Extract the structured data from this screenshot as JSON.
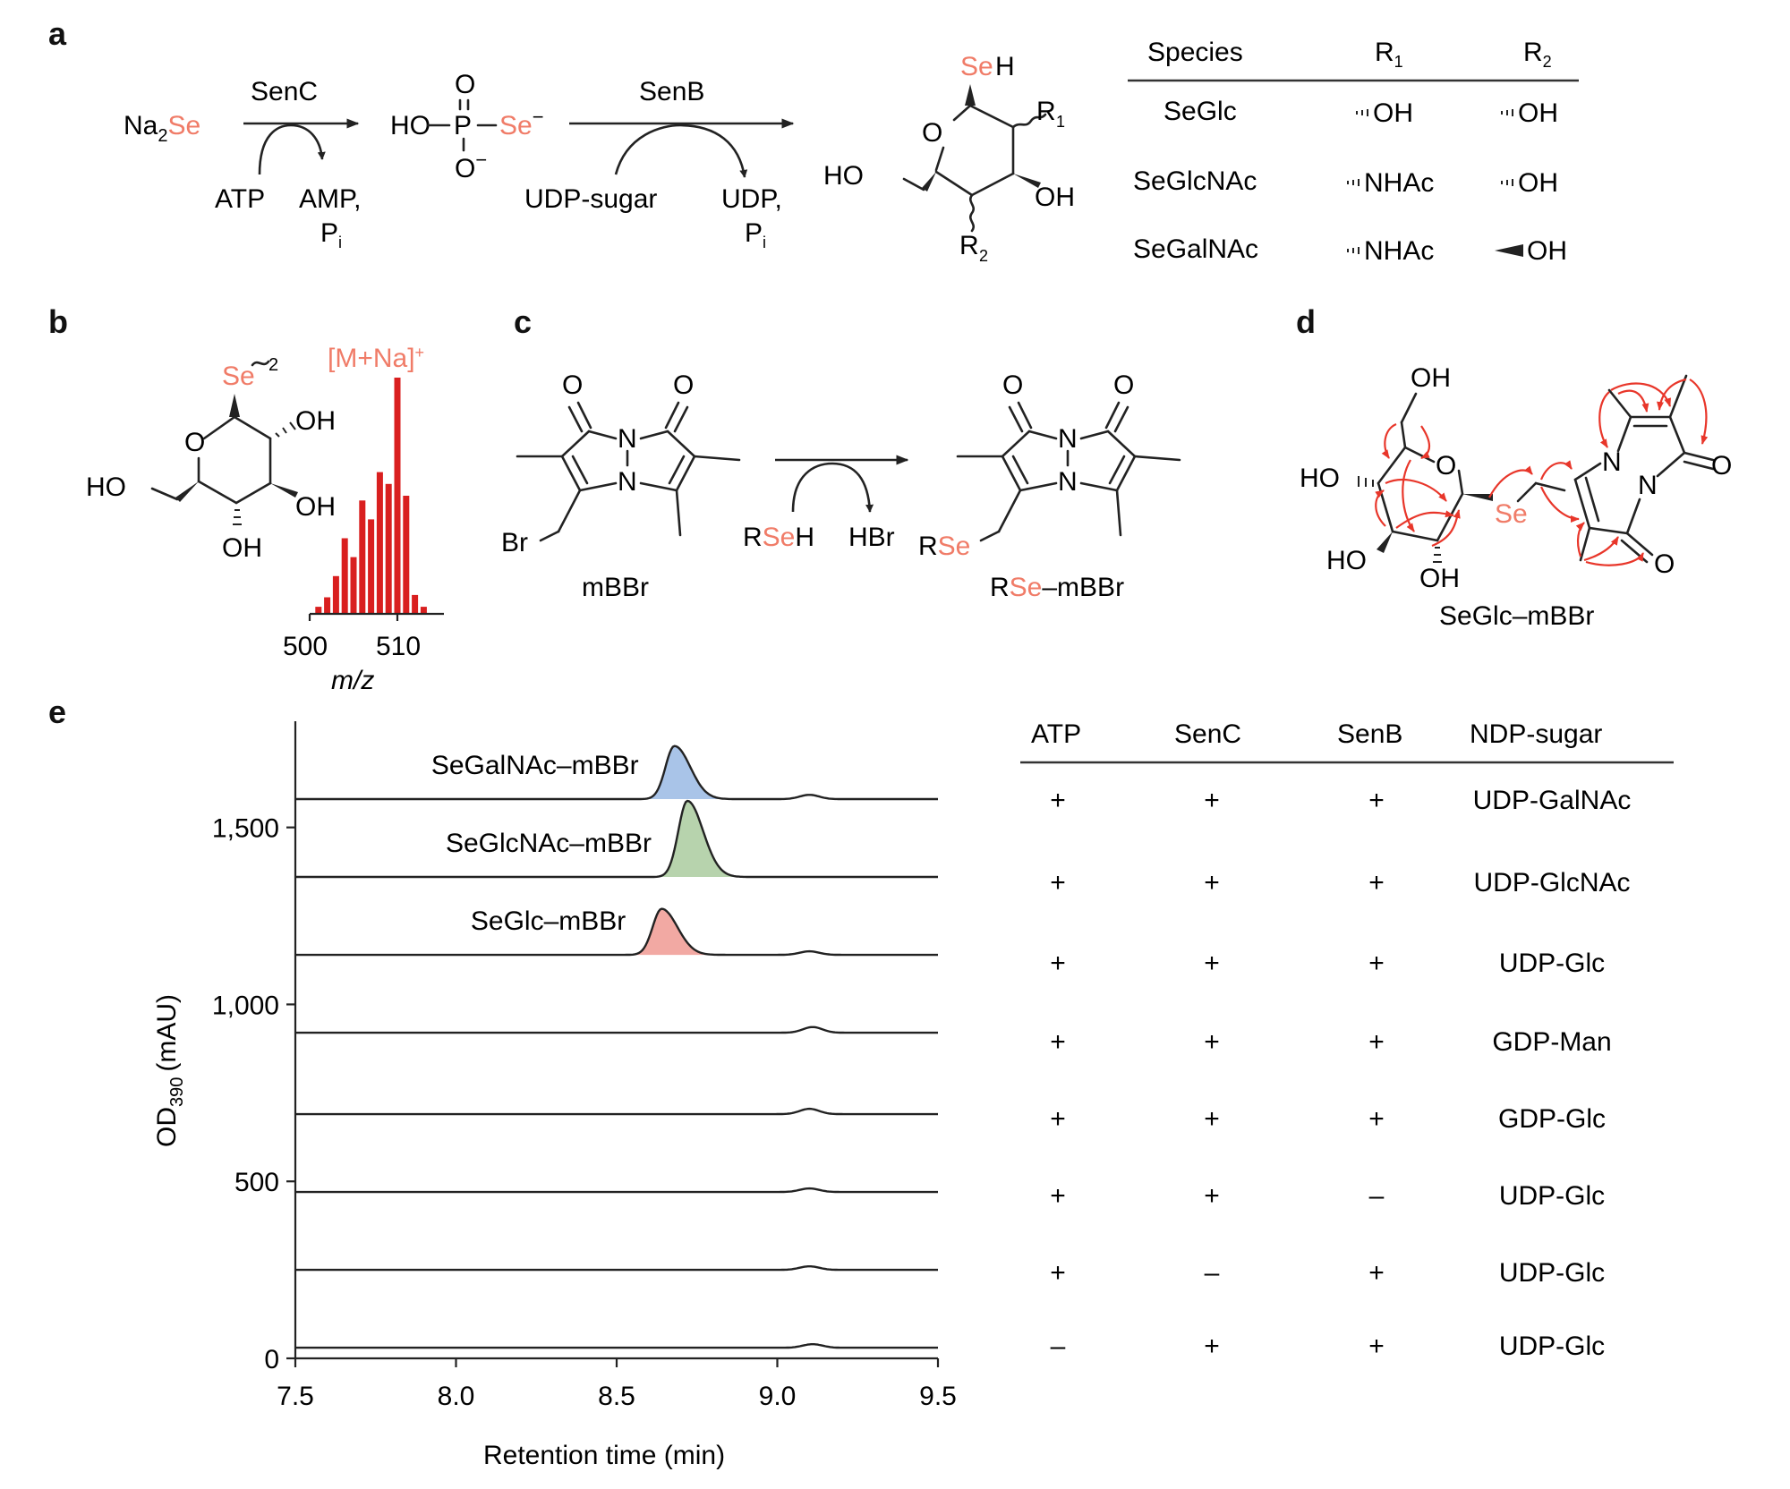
{
  "colors": {
    "ink": "#1a1a1a",
    "selenium": "#f07c68",
    "ms_bar": "#d91f1f",
    "hmbc_arrow": "#e8362a",
    "peak_SeGalNAc": "#a9c4e8",
    "peak_SeGlcNAc": "#b7d3ad",
    "peak_SeGlc": "#f2a9a3"
  },
  "panel_labels": {
    "a": "a",
    "b": "b",
    "c": "c",
    "d": "d",
    "e": "e"
  },
  "panel_a": {
    "na": "Na",
    "na_sub": "2",
    "na_se": "Se",
    "enzyme1": "SenC",
    "atp": "ATP",
    "amp": "AMP,",
    "pi_1": "P",
    "pi_1_sub": "i",
    "ho_p": "HO",
    "p": "P",
    "o_top": "O",
    "o_bottom": "O",
    "o_bottom_charge": "−",
    "se_phos": "Se",
    "se_phos_charge": "−",
    "enzyme2": "SenB",
    "udp_sugar": "UDP-sugar",
    "udp": "UDP,",
    "pi_2": "P",
    "pi_2_sub": "i",
    "sugar": {
      "se": "Se",
      "h": "H",
      "r1": "R",
      "r1_sub": "1",
      "o_ring": "O",
      "ho": "HO",
      "oh": "OH",
      "r2": "R",
      "r2_sub": "2"
    },
    "table": {
      "headers": [
        "Species",
        "R",
        "R"
      ],
      "header_subs": [
        "",
        "1",
        "2"
      ],
      "rows": [
        {
          "species": "SeGlc",
          "r1": "OH",
          "r2": "OH"
        },
        {
          "species": "SeGlcNAc",
          "r1": "NHAc",
          "r2": "OH"
        },
        {
          "species": "SeGalNAc",
          "r1": "NHAc",
          "r2": "OH"
        }
      ]
    }
  },
  "panel_b": {
    "se": "Se",
    "dimer": "2",
    "o_ring": "O",
    "ho": "HO",
    "oh1": "OH",
    "oh2": "OH",
    "oh3": "OH",
    "ion_label": "[M+Na]",
    "ion_charge": "+",
    "x_ticks": [
      500,
      510
    ],
    "x_label": "m/z",
    "ms_x": [
      501,
      502,
      503,
      504,
      505,
      506,
      507,
      508,
      509,
      510,
      511,
      512,
      513
    ],
    "ms_y": [
      3,
      7,
      16,
      32,
      24,
      48,
      40,
      60,
      55,
      100,
      50,
      8,
      3
    ]
  },
  "panel_c": {
    "o1": "O",
    "o2": "O",
    "n1": "N",
    "n2": "N",
    "br": "Br",
    "reagent": "mBBr",
    "rseh_r": "R",
    "rseh_se": "Se",
    "rseh_h": "H",
    "hbr": "HBr",
    "o3": "O",
    "o4": "O",
    "n3": "N",
    "n4": "N",
    "rse_r": "R",
    "rse_se": "Se",
    "product_r": "R",
    "product_se": "Se",
    "product_rest": "–mBBr"
  },
  "panel_d": {
    "oh_top": "OH",
    "o_ring": "O",
    "ho_left": "HO",
    "ho_bottom": "HO",
    "oh_bottom": "OH",
    "se": "Se",
    "n1": "N",
    "n2": "N",
    "o_right": "O",
    "o_bottom": "O",
    "name": "SeGlc–mBBr"
  },
  "panel_e": {
    "chart_data": {
      "type": "line",
      "x_label": "Retention time (min)",
      "y_label": "OD",
      "y_label_sub": "390",
      "y_label_unit": "(mAU)",
      "x_ticks": [
        "7.5",
        "8.0",
        "8.5",
        "9.0",
        "9.5"
      ],
      "y_ticks": [
        "0",
        "500",
        "1,000",
        "1,500"
      ],
      "y_tick_values": [
        0,
        500,
        1000,
        1500
      ],
      "xlim": [
        7.5,
        9.5
      ],
      "ylim": [
        0,
        1800
      ],
      "traces": [
        {
          "baseline": 1580,
          "peak_label": "SeGalNAc–mBBr",
          "peak_center": 8.68,
          "peak_height": 150,
          "peak_width": 0.035,
          "fill": "#a9c4e8",
          "minor_center": 9.1,
          "minor_height": 12
        },
        {
          "baseline": 1360,
          "peak_label": "SeGlcNAc–mBBr",
          "peak_center": 8.72,
          "peak_height": 215,
          "peak_width": 0.035,
          "fill": "#b7d3ad",
          "minor_center": 9.1,
          "minor_height": 0
        },
        {
          "baseline": 1140,
          "peak_label": "SeGlc–mBBr",
          "peak_center": 8.64,
          "peak_height": 130,
          "peak_width": 0.035,
          "fill": "#f2a9a3",
          "minor_center": 9.1,
          "minor_height": 10
        },
        {
          "baseline": 920,
          "peak_label": "",
          "peak_center": 0,
          "peak_height": 0,
          "peak_width": 0.035,
          "fill": "",
          "minor_center": 9.11,
          "minor_height": 16
        },
        {
          "baseline": 690,
          "peak_label": "",
          "peak_center": 0,
          "peak_height": 0,
          "peak_width": 0.035,
          "fill": "",
          "minor_center": 9.1,
          "minor_height": 15
        },
        {
          "baseline": 470,
          "peak_label": "",
          "peak_center": 0,
          "peak_height": 0,
          "peak_width": 0.035,
          "fill": "",
          "minor_center": 9.1,
          "minor_height": 10
        },
        {
          "baseline": 250,
          "peak_label": "",
          "peak_center": 0,
          "peak_height": 0,
          "peak_width": 0.035,
          "fill": "",
          "minor_center": 9.1,
          "minor_height": 10
        },
        {
          "baseline": 30,
          "peak_label": "",
          "peak_center": 0,
          "peak_height": 0,
          "peak_width": 0.035,
          "fill": "",
          "minor_center": 9.11,
          "minor_height": 10
        }
      ]
    },
    "table": {
      "headers": [
        "ATP",
        "SenC",
        "SenB",
        "NDP-sugar"
      ],
      "rows": [
        [
          "+",
          "+",
          "+",
          "UDP-GalNAc"
        ],
        [
          "+",
          "+",
          "+",
          "UDP-GlcNAc"
        ],
        [
          "+",
          "+",
          "+",
          "UDP-Glc"
        ],
        [
          "+",
          "+",
          "+",
          "GDP-Man"
        ],
        [
          "+",
          "+",
          "+",
          "GDP-Glc"
        ],
        [
          "+",
          "+",
          "–",
          "UDP-Glc"
        ],
        [
          "+",
          "–",
          "+",
          "UDP-Glc"
        ],
        [
          "–",
          "+",
          "+",
          "UDP-Glc"
        ]
      ]
    }
  }
}
